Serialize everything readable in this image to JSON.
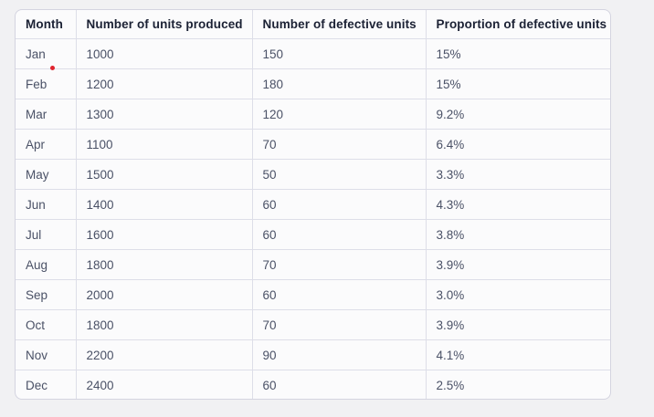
{
  "page": {
    "background_color": "#f1f1f3",
    "card_background_color": "#fbfbfc",
    "border_color": "#d4d4e0"
  },
  "click_marker": {
    "color": "#e0242e"
  },
  "chart_data": {
    "type": "table",
    "title": "",
    "columns": [
      "Month",
      "Number of units produced",
      "Number of defective units",
      "Proportion of defective units"
    ],
    "rows": [
      [
        "Jan",
        "1000",
        "150",
        "15%"
      ],
      [
        "Feb",
        "1200",
        "180",
        "15%"
      ],
      [
        "Mar",
        "1300",
        "120",
        "9.2%"
      ],
      [
        "Apr",
        "1100",
        "70",
        "6.4%"
      ],
      [
        "May",
        "1500",
        "50",
        "3.3%"
      ],
      [
        "Jun",
        "1400",
        "60",
        "4.3%"
      ],
      [
        "Jul",
        "1600",
        "60",
        "3.8%"
      ],
      [
        "Aug",
        "1800",
        "70",
        "3.9%"
      ],
      [
        "Sep",
        "2000",
        "60",
        "3.0%"
      ],
      [
        "Oct",
        "1800",
        "70",
        "3.9%"
      ],
      [
        "Nov",
        "2200",
        "90",
        "4.1%"
      ],
      [
        "Dec",
        "2400",
        "60",
        "2.5%"
      ]
    ]
  }
}
